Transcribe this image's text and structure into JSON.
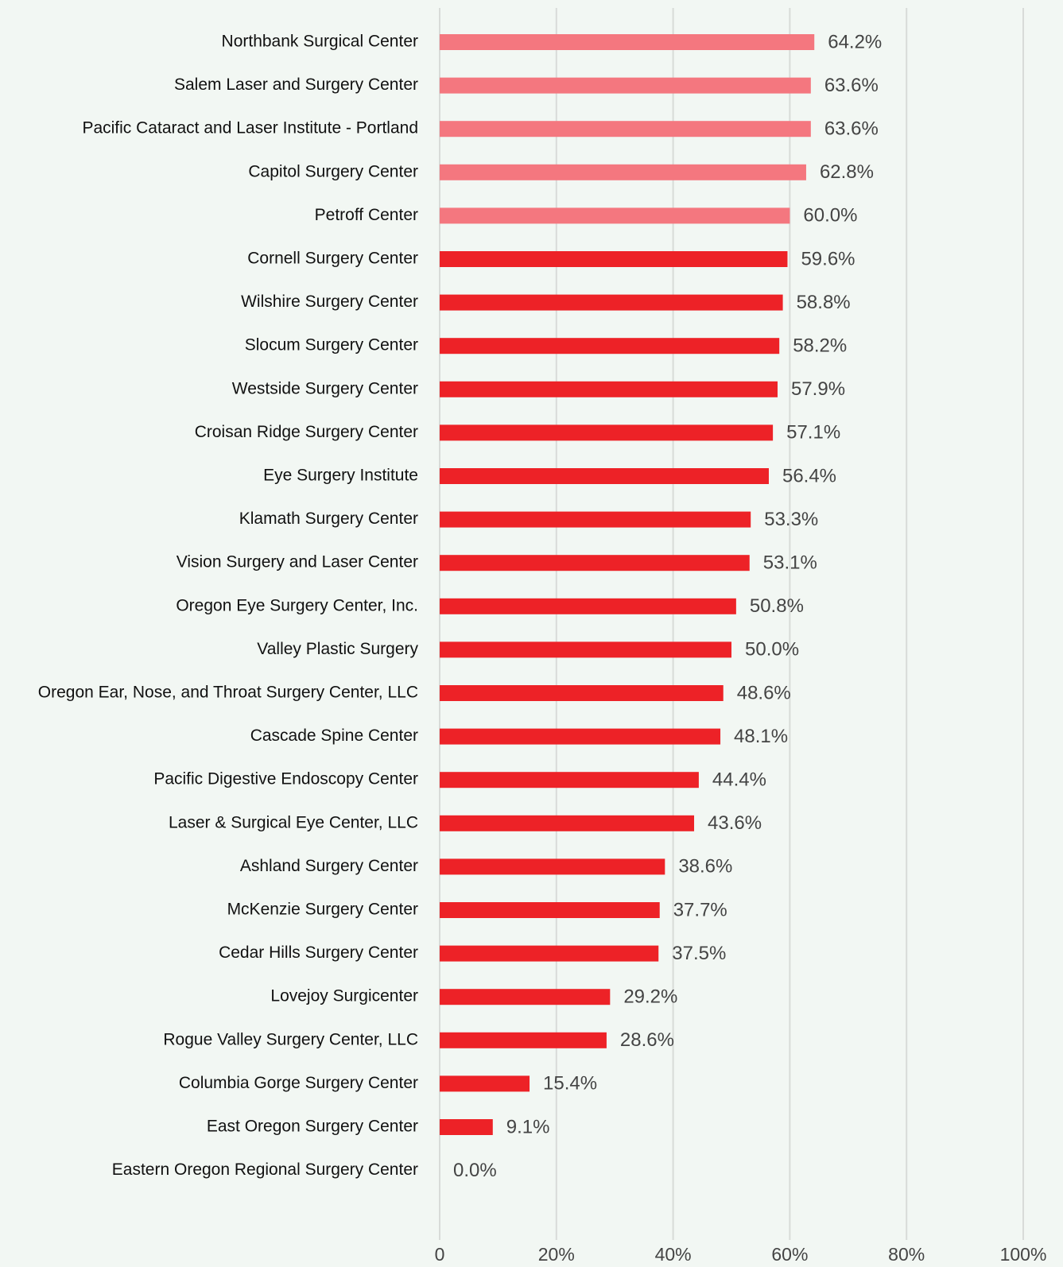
{
  "chart_data": {
    "type": "hbar",
    "categories": [
      "Northbank Surgical Center",
      "Salem Laser and Surgery Center",
      "Pacific Cataract and Laser Institute - Portland",
      "Capitol Surgery Center",
      "Petroff Center",
      "Cornell Surgery Center",
      "Wilshire Surgery Center",
      "Slocum Surgery Center",
      "Westside Surgery Center",
      "Croisan Ridge Surgery Center",
      "Eye Surgery Institute",
      "Klamath Surgery Center",
      "Vision Surgery and Laser Center",
      "Oregon Eye Surgery Center, Inc.",
      "Valley Plastic Surgery",
      "Oregon Ear, Nose, and Throat Surgery Center, LLC",
      "Cascade Spine Center",
      "Pacific Digestive Endoscopy Center",
      "Laser & Surgical Eye Center, LLC",
      "Ashland Surgery Center",
      "McKenzie Surgery Center",
      "Cedar Hills Surgery Center",
      "Lovejoy Surgicenter",
      "Rogue Valley Surgery Center, LLC",
      "Columbia Gorge Surgery Center",
      "East Oregon Surgery Center",
      "Eastern Oregon Regional Surgery Center"
    ],
    "values": [
      64.2,
      63.6,
      63.6,
      62.8,
      60.0,
      59.6,
      58.8,
      58.2,
      57.9,
      57.1,
      56.4,
      53.3,
      53.1,
      50.8,
      50.0,
      48.6,
      48.1,
      44.4,
      43.6,
      38.6,
      37.7,
      37.5,
      29.2,
      28.6,
      15.4,
      9.1,
      0.0
    ],
    "value_labels": [
      "64.2%",
      "63.6%",
      "63.6%",
      "62.8%",
      "60.0%",
      "59.6%",
      "58.8%",
      "58.2%",
      "57.9%",
      "57.1%",
      "56.4%",
      "53.3%",
      "53.1%",
      "50.8%",
      "50.0%",
      "48.6%",
      "48.1%",
      "44.4%",
      "43.6%",
      "38.6%",
      "37.7%",
      "37.5%",
      "29.2%",
      "28.6%",
      "15.4%",
      "9.1%",
      "0.0%"
    ],
    "colors": [
      "#f4777f",
      "#f4777f",
      "#f4777f",
      "#f4777f",
      "#f4777f",
      "#ed2227",
      "#ed2227",
      "#ed2227",
      "#ed2227",
      "#ed2227",
      "#ed2227",
      "#ed2227",
      "#ed2227",
      "#ed2227",
      "#ed2227",
      "#ed2227",
      "#ed2227",
      "#ed2227",
      "#ed2227",
      "#ed2227",
      "#ed2227",
      "#ed2227",
      "#ed2227",
      "#ed2227",
      "#ed2227",
      "#ed2227",
      "#ed2227"
    ],
    "xlim": [
      0,
      100
    ],
    "xticks": [
      0,
      {
        "value": 20,
        "label": "20%"
      },
      {
        "value": 40,
        "label": "40%"
      },
      {
        "value": 60,
        "label": "60%"
      },
      {
        "value": 80,
        "label": "80%"
      },
      {
        "value": 100,
        "label": "100%"
      }
    ],
    "grid": true
  }
}
